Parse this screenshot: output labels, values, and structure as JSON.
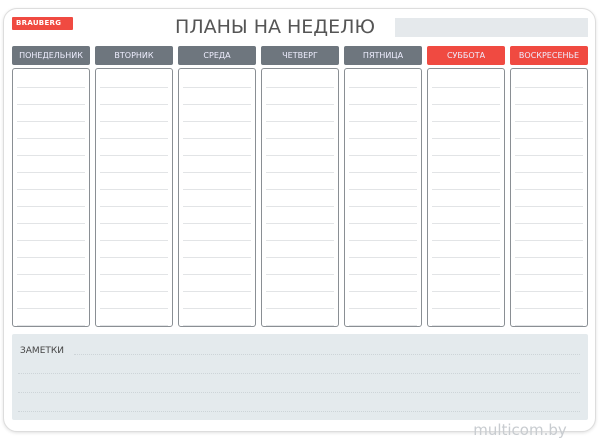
{
  "brand": "BRAUBERG",
  "title": "ПЛАНЫ НА НЕДЕЛЮ",
  "days": [
    {
      "label": "ПОНЕДЕЛЬНИК",
      "color": "#6e767e"
    },
    {
      "label": "ВТОРНИК",
      "color": "#6e767e"
    },
    {
      "label": "СРЕДА",
      "color": "#6e767e"
    },
    {
      "label": "ЧЕТВЕРГ",
      "color": "#6e767e"
    },
    {
      "label": "ПЯТНИЦА",
      "color": "#6e767e"
    },
    {
      "label": "СУББОТА",
      "color": "#f04a41"
    },
    {
      "label": "ВОСКРЕСЕНЬЕ",
      "color": "#f04a41"
    }
  ],
  "notes": {
    "label": "ЗАМЕТКИ"
  },
  "watermark": "multicom.by"
}
